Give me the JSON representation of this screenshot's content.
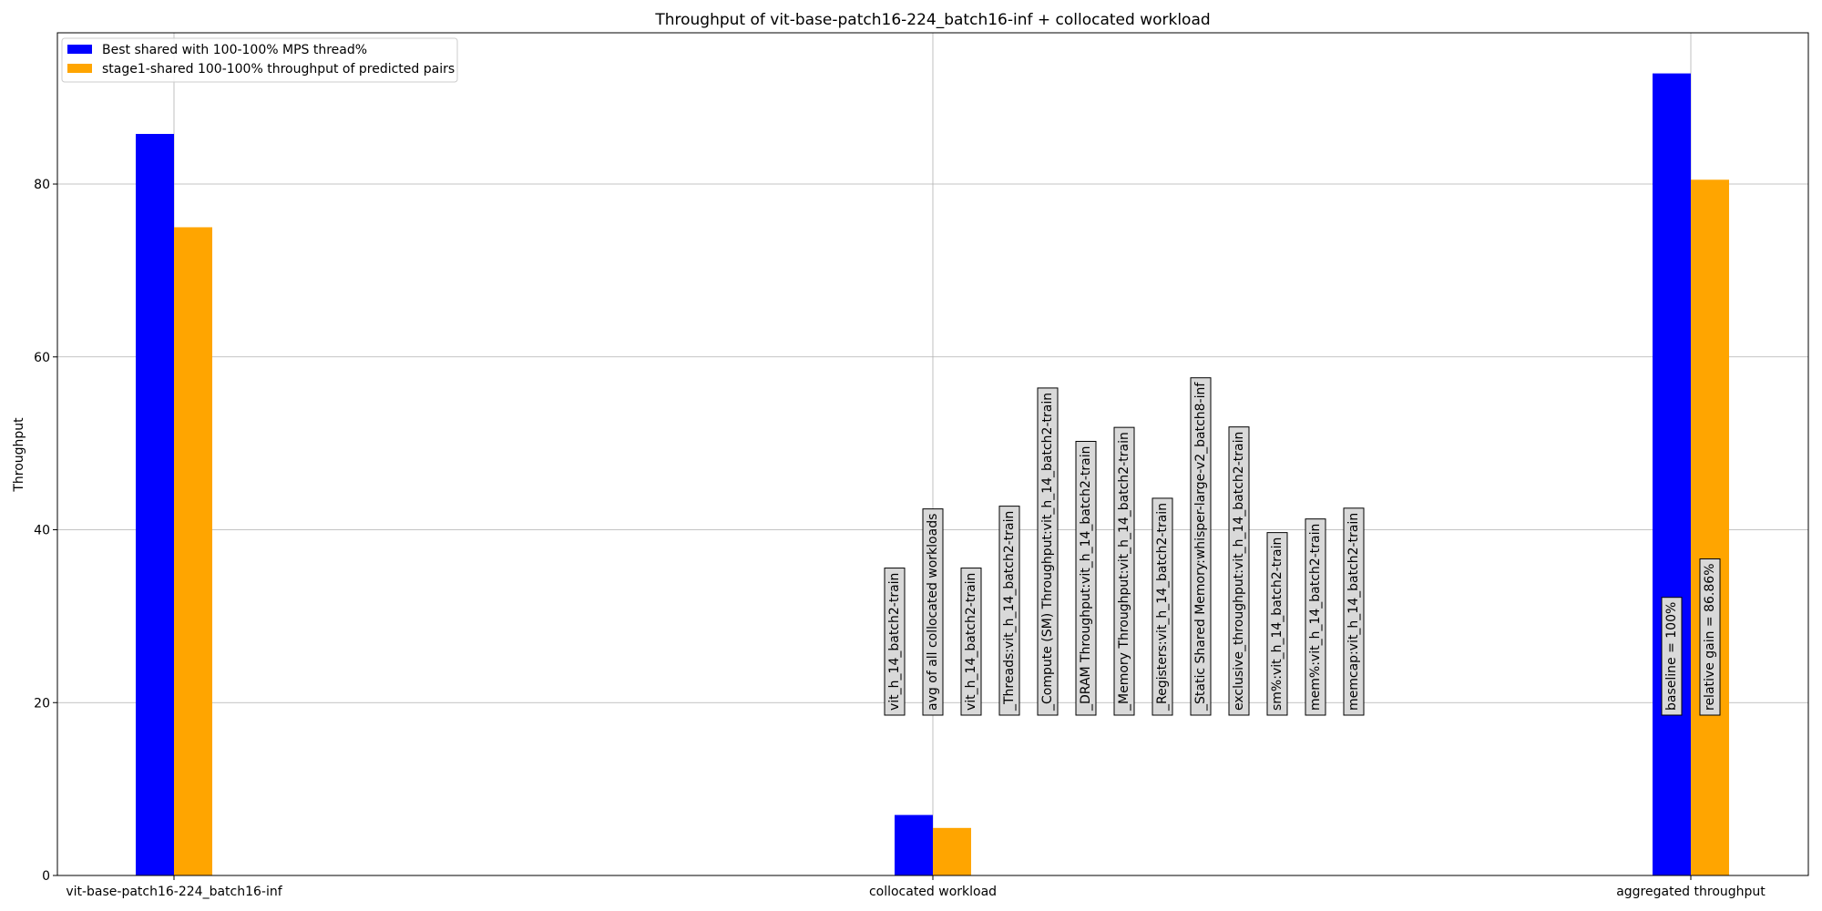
{
  "chart_data": {
    "type": "bar",
    "title": "Throughput of vit-base-patch16-224_batch16-inf + collocated workload",
    "xlabel": "",
    "ylabel": "Throughput",
    "ylim": [
      0,
      97.5
    ],
    "yticks": [
      0,
      20,
      40,
      60,
      80
    ],
    "grid": true,
    "legend_position": "top-left",
    "categories": [
      "vit-base-patch16-224_batch16-inf",
      "collocated workload",
      "aggregated throughput"
    ],
    "series": [
      {
        "name": "Best shared with 100-100% MPS thread%",
        "color": "#0000ff",
        "values": [
          85.8,
          7.0,
          92.8
        ]
      },
      {
        "name": "stage1-shared 100-100% throughput of predicted pairs",
        "color": "#ffa500",
        "values": [
          75.0,
          5.5,
          80.5
        ]
      }
    ],
    "annotations": [
      {
        "text": "vit_h_14_batch2-train",
        "category": 1,
        "offset": -0.25
      },
      {
        "text": "avg of all collocated workloads",
        "category": 1,
        "offset": 0.0
      },
      {
        "text": "vit_h_14_batch2-train",
        "category": 1,
        "offset": 0.25
      },
      {
        "text": "_Threads:vit_h_14_batch2-train",
        "category": 1,
        "offset": 0.5
      },
      {
        "text": "_Compute (SM) Throughput:vit_h_14_batch2-train",
        "category": 1,
        "offset": 0.75
      },
      {
        "text": "_DRAM Throughput:vit_h_14_batch2-train",
        "category": 1,
        "offset": 1.0
      },
      {
        "text": "_Memory Throughput:vit_h_14_batch2-train",
        "category": 1,
        "offset": 1.25
      },
      {
        "text": "_Registers:vit_h_14_batch2-train",
        "category": 1,
        "offset": 1.5
      },
      {
        "text": "_Static Shared Memory:whisper-large-v2_batch8-inf",
        "category": 1,
        "offset": 1.75
      },
      {
        "text": "exclusive_throughput:vit_h_14_batch2-train",
        "category": 1,
        "offset": 2.0
      },
      {
        "text": "sm%:vit_h_14_batch2-train",
        "category": 1,
        "offset": 2.25
      },
      {
        "text": "mem%:vit_h_14_batch2-train",
        "category": 1,
        "offset": 2.5
      },
      {
        "text": "memcap:vit_h_14_batch2-train",
        "category": 1,
        "offset": 2.75
      },
      {
        "text": "baseline = 100%",
        "category": 2,
        "offset": -0.125
      },
      {
        "text": "relative gain = 86.86%",
        "category": 2,
        "offset": 0.125
      }
    ]
  }
}
